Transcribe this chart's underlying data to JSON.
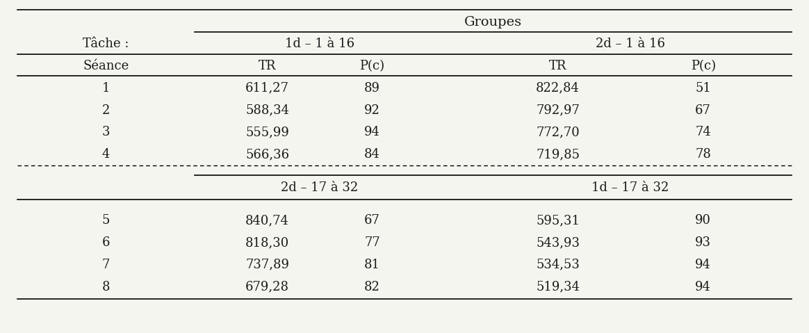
{
  "title": "Groupes",
  "tache_label": "Tâche :",
  "seance_label": "Séance",
  "group1_top": "1d – 1 à 16",
  "group2_top": "2d – 1 à 16",
  "group1_bot": "2d – 17 à 32",
  "group2_bot": "1d – 17 à 32",
  "col_headers": [
    "TR",
    "P(c)",
    "TR",
    "P(c)"
  ],
  "rows_top": [
    [
      "1",
      "611,27",
      "89",
      "822,84",
      "51"
    ],
    [
      "2",
      "588,34",
      "92",
      "792,97",
      "67"
    ],
    [
      "3",
      "555,99",
      "94",
      "772,70",
      "74"
    ],
    [
      "4",
      "566,36",
      "84",
      "719,85",
      "78"
    ]
  ],
  "rows_bot": [
    [
      "5",
      "840,74",
      "67",
      "595,31",
      "90"
    ],
    [
      "6",
      "818,30",
      "77",
      "543,93",
      "93"
    ],
    [
      "7",
      "737,89",
      "81",
      "534,53",
      "94"
    ],
    [
      "8",
      "679,28",
      "82",
      "519,34",
      "94"
    ]
  ],
  "bg_color": "#f5f5f0",
  "text_color": "#1a1a1a",
  "font_size": 13
}
